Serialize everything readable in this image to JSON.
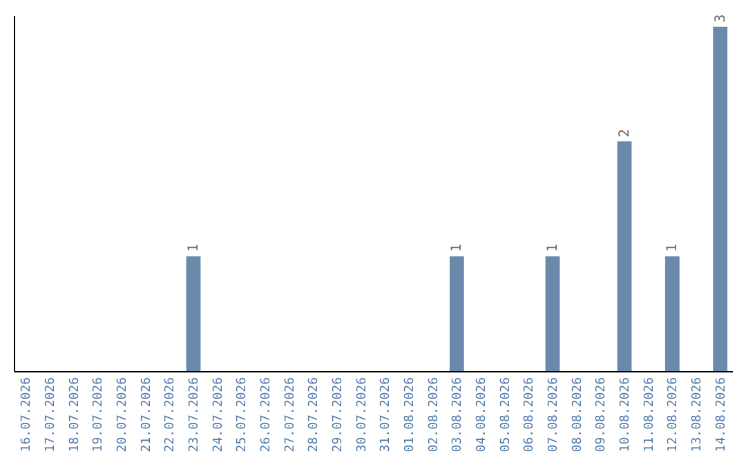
{
  "chart_data": {
    "type": "bar",
    "categories": [
      "16.07.2026",
      "17.07.2026",
      "18.07.2026",
      "19.07.2026",
      "20.07.2026",
      "21.07.2026",
      "22.07.2026",
      "23.07.2026",
      "24.07.2026",
      "25.07.2026",
      "26.07.2026",
      "27.07.2026",
      "28.07.2026",
      "29.07.2026",
      "30.07.2026",
      "31.07.2026",
      "01.08.2026",
      "02.08.2026",
      "03.08.2026",
      "04.08.2026",
      "05.08.2026",
      "06.08.2026",
      "07.08.2026",
      "08.08.2026",
      "09.08.2026",
      "10.08.2026",
      "11.08.2026",
      "12.08.2026",
      "13.08.2026",
      "14.08.2026"
    ],
    "values": [
      0,
      0,
      0,
      0,
      0,
      0,
      0,
      1,
      0,
      0,
      0,
      0,
      0,
      0,
      0,
      0,
      0,
      0,
      1,
      0,
      0,
      0,
      1,
      0,
      0,
      2,
      0,
      1,
      0,
      3
    ],
    "value_labels": [
      null,
      null,
      null,
      null,
      null,
      null,
      null,
      "1",
      null,
      null,
      null,
      null,
      null,
      null,
      null,
      null,
      null,
      null,
      "1",
      null,
      null,
      null,
      "1",
      null,
      null,
      "2",
      null,
      "1",
      null,
      "3"
    ],
    "color": "#6a8aab",
    "ylim": [
      0,
      3.1
    ],
    "tick_labels": "x",
    "grid": false
  }
}
